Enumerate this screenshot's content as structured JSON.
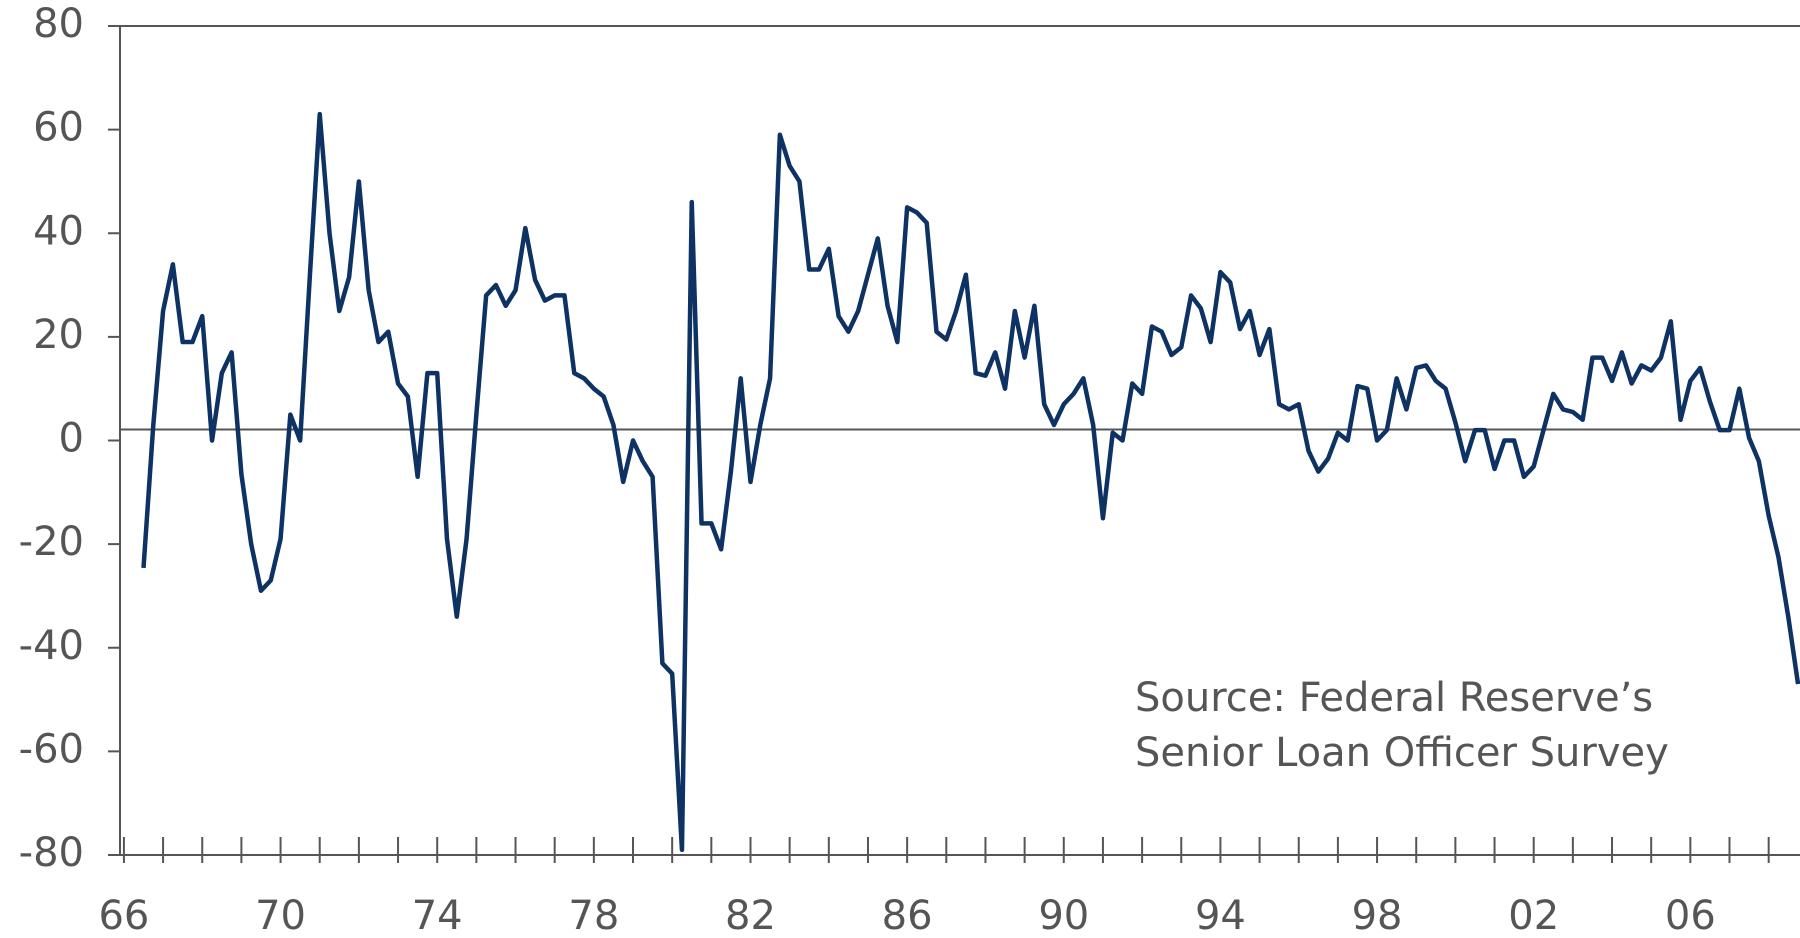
{
  "chart_data": {
    "type": "line",
    "annotation": [
      "Source: Federal Reserve’s",
      "Senior Loan Officer Survey"
    ],
    "series": [
      {
        "color": "#0d3263",
        "x": [
          1966.5,
          1966.75,
          1967,
          1967.25,
          1967.5,
          1967.75,
          1968,
          1968.25,
          1968.5,
          1968.75,
          1969,
          1969.25,
          1969.5,
          1969.75,
          1970,
          1970.25,
          1970.5,
          1970.75,
          1971,
          1971.25,
          1971.5,
          1971.75,
          1972,
          1972.25,
          1972.5,
          1972.75,
          1973,
          1973.25,
          1973.5,
          1973.75,
          1974,
          1974.25,
          1974.5,
          1974.75,
          1975,
          1975.25,
          1975.5,
          1975.75,
          1976,
          1976.25,
          1976.5,
          1976.75,
          1977,
          1977.25,
          1977.5,
          1977.75,
          1978,
          1978.25,
          1978.5,
          1978.75,
          1979,
          1979.25,
          1979.5,
          1979.75,
          1980,
          1980.25,
          1980.5,
          1980.75,
          1981,
          1981.25,
          1981.5,
          1981.75,
          1982,
          1982.25,
          1982.5,
          1982.75,
          1983,
          1983.25,
          1983.5,
          1983.75,
          1984,
          1984.25,
          1984.5,
          1984.75,
          1985,
          1985.25,
          1985.5,
          1985.75,
          1986,
          1986.25,
          1986.5,
          1986.75,
          1987,
          1987.25,
          1987.5,
          1987.75,
          1988,
          1988.25,
          1988.5,
          1988.75,
          1989,
          1989.25,
          1989.5,
          1989.75,
          1990,
          1990.25,
          1990.5,
          1990.75,
          1991,
          1991.25,
          1991.5,
          1991.75,
          1992,
          1992.25,
          1992.5,
          1992.75,
          1993,
          1993.25,
          1993.5,
          1993.75,
          1994,
          1994.25,
          1994.5,
          1994.75,
          1995,
          1995.25,
          1995.5,
          1995.75,
          1996,
          1996.25,
          1996.5,
          1996.75,
          1997,
          1997.25,
          1997.5,
          1997.75,
          1998,
          1998.25,
          1998.5,
          1998.75,
          1999,
          1999.25,
          1999.5,
          1999.75,
          2000,
          2000.25,
          2000.5,
          2000.75,
          2001,
          2001.25,
          2001.5,
          2001.75,
          2002,
          2002.25,
          2002.5,
          2002.75,
          2003,
          2003.25,
          2003.5,
          2003.75,
          2004,
          2004.25,
          2004.5,
          2004.75,
          2005,
          2005.25,
          2005.5,
          2005.75,
          2006,
          2006.25,
          2006.5,
          2006.75,
          2007,
          2007.25,
          2007.5,
          2007.75,
          2008,
          2008.25,
          2008.5,
          2008.75
        ],
        "values": [
          -24.6,
          3,
          25,
          34,
          19,
          19,
          24,
          0,
          13,
          17,
          -6.5,
          -20,
          -29,
          -27,
          -19,
          5,
          0,
          32,
          63,
          40,
          25,
          31.5,
          50,
          29,
          19,
          21,
          11,
          8.5,
          -7,
          13,
          13,
          -19,
          -34,
          -19,
          5,
          28,
          30,
          26,
          29,
          41,
          31,
          27,
          28,
          28,
          13,
          12,
          10,
          8.5,
          3,
          -8,
          0,
          -4,
          -7,
          -43,
          -45,
          -79,
          46,
          -16,
          -16,
          -21,
          -6,
          12,
          -8,
          3,
          12,
          59,
          53,
          50,
          33,
          33,
          37,
          24,
          21,
          25,
          32,
          39,
          26,
          19,
          45,
          44,
          42,
          21,
          19.5,
          25,
          32,
          13,
          12.5,
          17,
          10,
          25,
          16,
          26,
          7,
          3,
          7,
          9,
          12,
          3,
          -15,
          1.5,
          0,
          11,
          9,
          22,
          21,
          16.5,
          18,
          28,
          25.5,
          19,
          32.5,
          30.5,
          21.5,
          25,
          16.5,
          21.5,
          7,
          6,
          7,
          -2,
          -6,
          -3.5,
          1.5,
          0,
          10.5,
          10,
          0,
          2,
          12,
          6,
          14,
          14.5,
          11.5,
          10,
          3.5,
          -4,
          2,
          2,
          -5.5,
          0,
          0,
          -7,
          -5,
          2,
          9,
          6,
          5.5,
          4,
          16,
          16,
          11.5,
          17,
          11,
          14.5,
          13.5,
          16,
          23,
          4,
          11.5,
          14,
          7.5,
          2,
          2,
          10,
          0.5,
          -4,
          -14.5,
          -22.5,
          -34,
          -47
        ]
      }
    ],
    "xlim": [
      1965.9,
      2008.8
    ],
    "xticks": [
      {
        "value": 1966,
        "label": "66"
      },
      {
        "value": 1970,
        "label": "70"
      },
      {
        "value": 1974,
        "label": "74"
      },
      {
        "value": 1978,
        "label": "78"
      },
      {
        "value": 1982,
        "label": "82"
      },
      {
        "value": 1986,
        "label": "86"
      },
      {
        "value": 1990,
        "label": "90"
      },
      {
        "value": 1994,
        "label": "94"
      },
      {
        "value": 1998,
        "label": "98"
      },
      {
        "value": 2002,
        "label": "02"
      },
      {
        "value": 2006,
        "label": "06"
      }
    ],
    "xminorticks": [
      1967,
      1968,
      1969,
      1971,
      1972,
      1973,
      1975,
      1976,
      1977,
      1979,
      1980,
      1981,
      1983,
      1984,
      1985,
      1987,
      1988,
      1989,
      1991,
      1992,
      1993,
      1995,
      1996,
      1997,
      1999,
      2000,
      2001,
      2003,
      2004,
      2005,
      2007,
      2008
    ],
    "ylim": [
      -80,
      80
    ],
    "yticks": [
      80,
      60,
      40,
      20,
      0,
      -20,
      -40,
      -60,
      -80
    ]
  }
}
